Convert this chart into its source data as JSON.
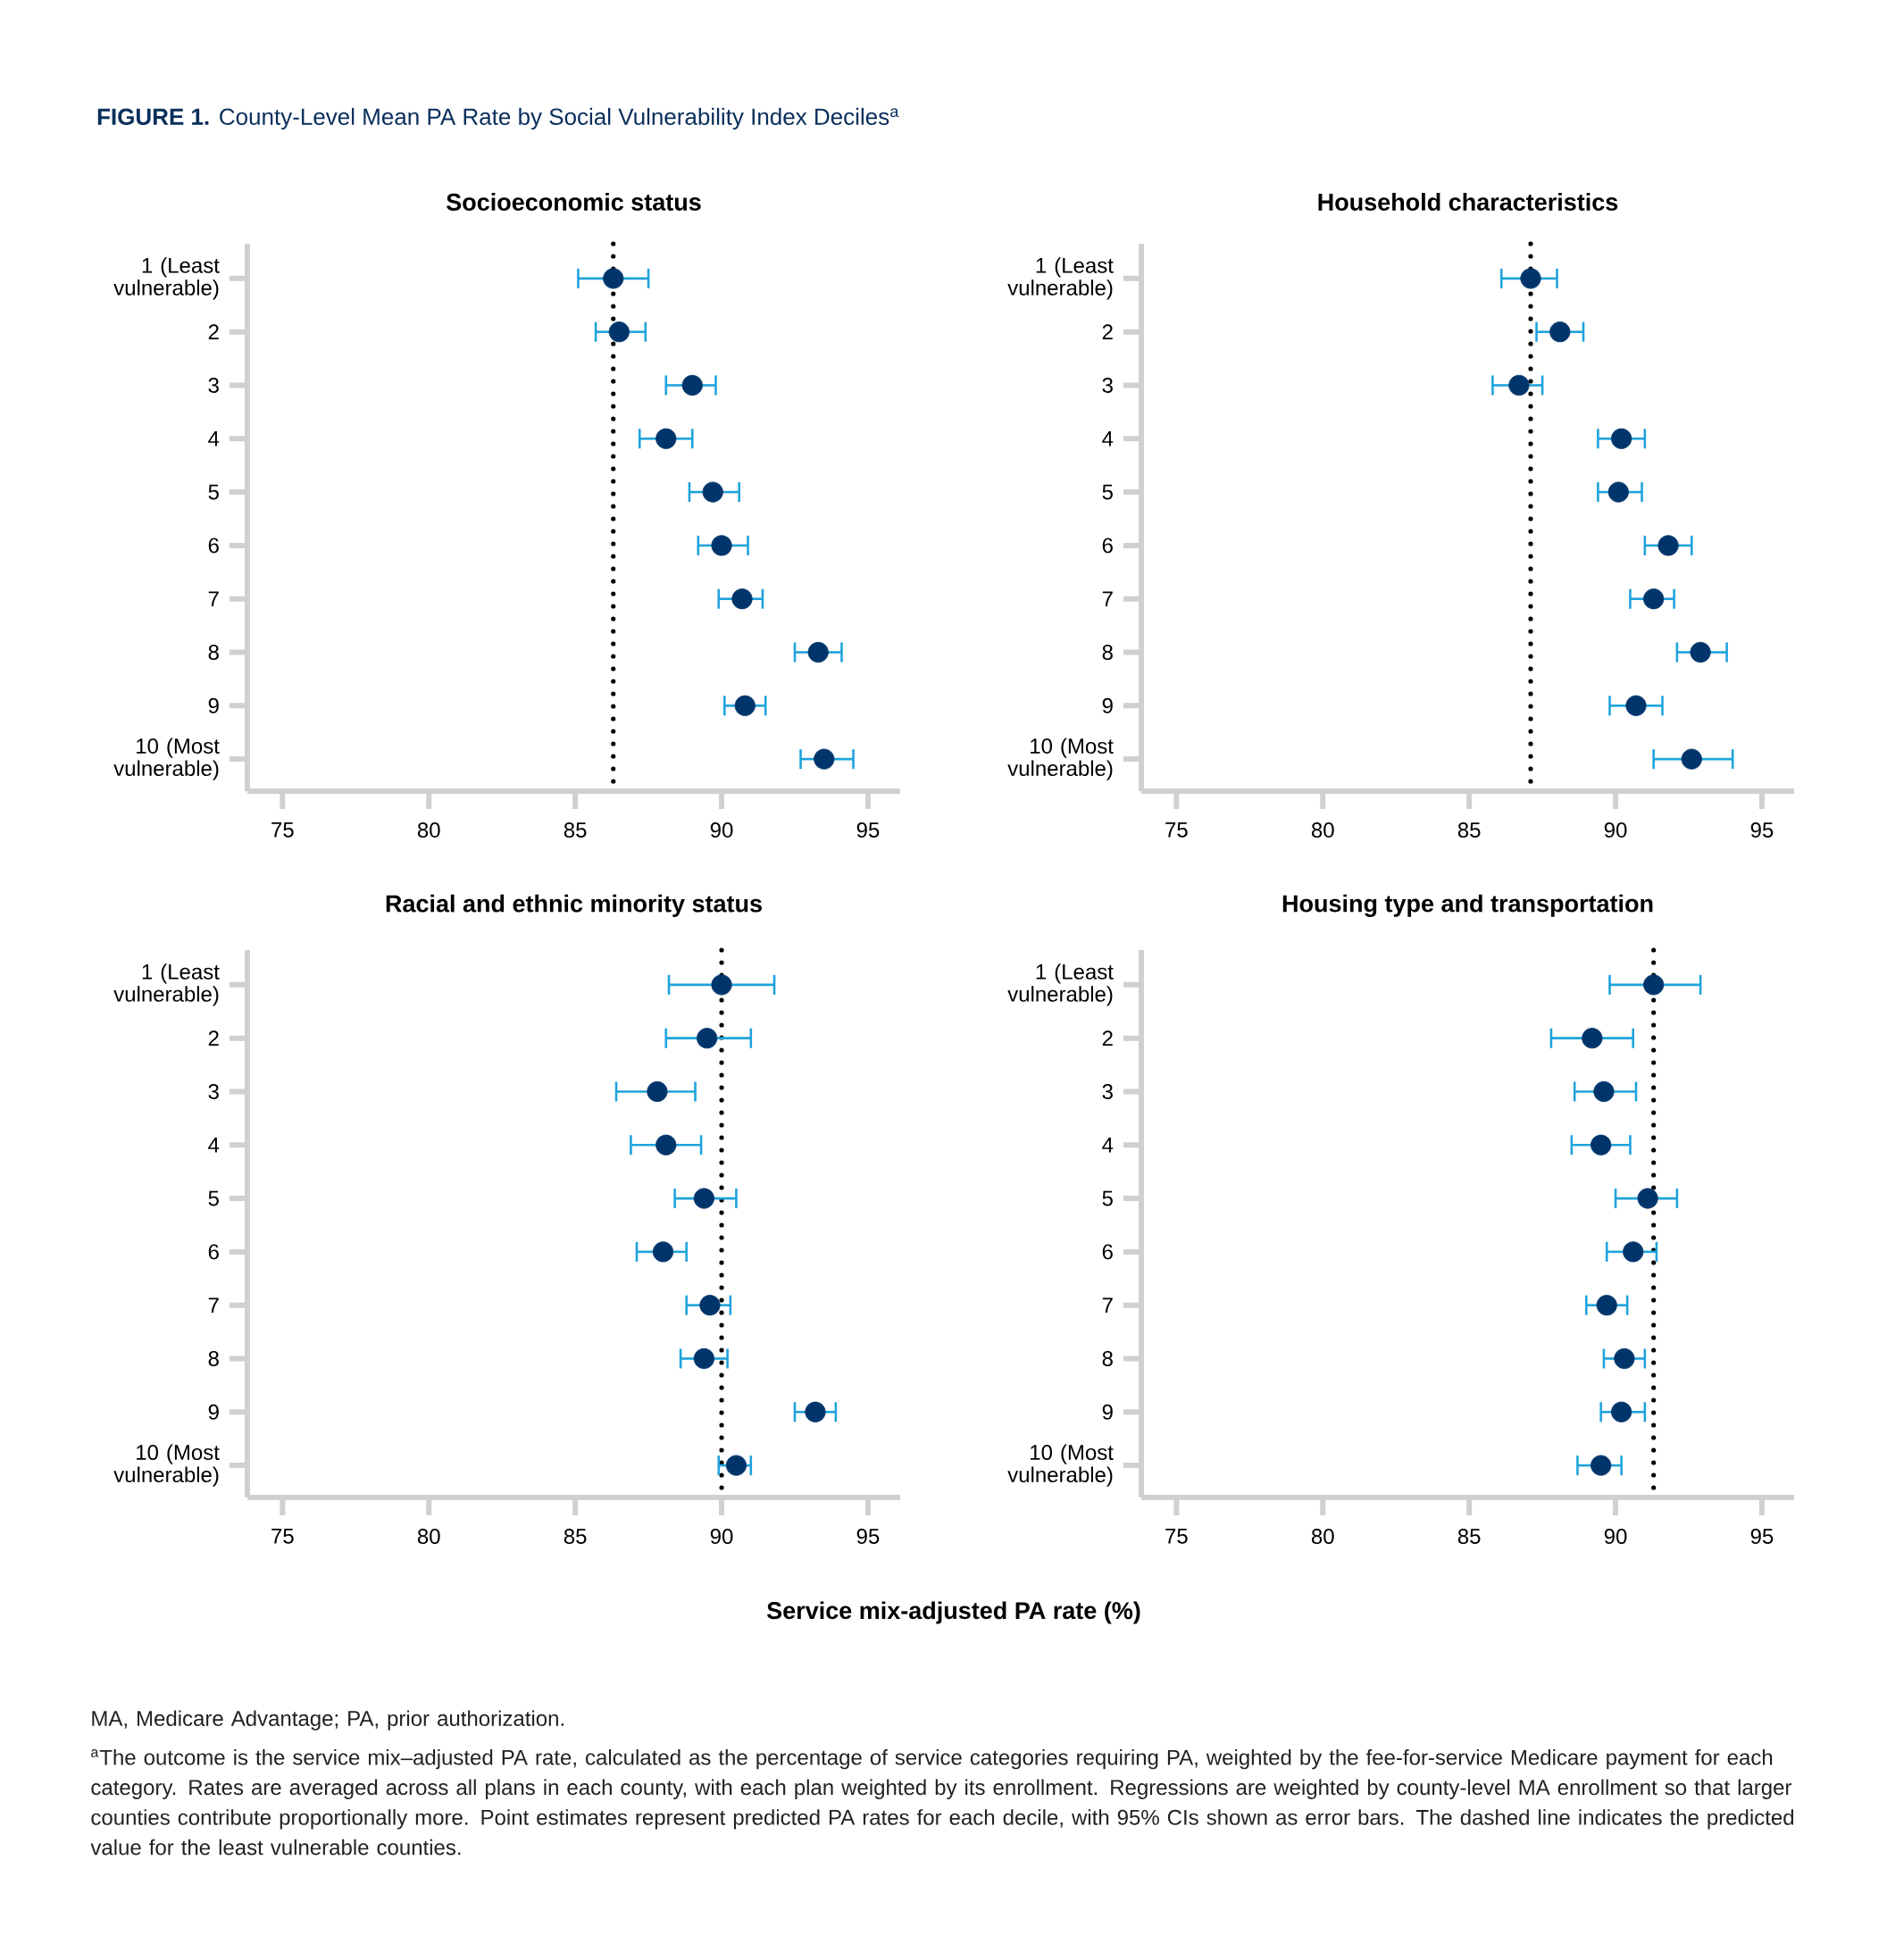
{
  "chart_data": [
    {
      "type": "scatter",
      "orientation": "horizontal",
      "title": "Socioeconomic status",
      "categories": [
        "1 (Least vulnerable)",
        "2",
        "3",
        "4",
        "5",
        "6",
        "7",
        "8",
        "9",
        "10 (Most vulnerable)"
      ],
      "xlim": [
        73.8,
        96.1
      ],
      "xticks": [
        75,
        80,
        85,
        90,
        95
      ],
      "color": "#00356b",
      "values": [
        86.3,
        86.5,
        89.0,
        88.1,
        89.7,
        90.0,
        90.7,
        93.3,
        90.8,
        93.5
      ],
      "errors": [
        [
          85.1,
          87.5
        ],
        [
          85.7,
          87.4
        ],
        [
          88.1,
          89.8
        ],
        [
          87.2,
          89.0
        ],
        [
          88.9,
          90.6
        ],
        [
          89.2,
          90.9
        ],
        [
          89.9,
          91.4
        ],
        [
          92.5,
          94.1
        ],
        [
          90.1,
          91.5
        ],
        [
          92.7,
          94.5
        ]
      ],
      "ref_lines": [
        {
          "axis": "x",
          "value": 86.3,
          "line_style": "dotted",
          "color": "#000000"
        }
      ]
    },
    {
      "type": "scatter",
      "orientation": "horizontal",
      "title": "Household characteristics",
      "categories": [
        "1 (Least vulnerable)",
        "2",
        "3",
        "4",
        "5",
        "6",
        "7",
        "8",
        "9",
        "10 (Most vulnerable)"
      ],
      "xlim": [
        73.8,
        96.1
      ],
      "xticks": [
        75,
        80,
        85,
        90,
        95
      ],
      "color": "#00356b",
      "values": [
        87.1,
        88.1,
        86.7,
        90.2,
        90.1,
        91.8,
        91.3,
        92.9,
        90.7,
        92.6
      ],
      "errors": [
        [
          86.1,
          88.0
        ],
        [
          87.3,
          88.9
        ],
        [
          85.8,
          87.5
        ],
        [
          89.4,
          91.0
        ],
        [
          89.4,
          90.9
        ],
        [
          91.0,
          92.6
        ],
        [
          90.5,
          92.0
        ],
        [
          92.1,
          93.8
        ],
        [
          89.8,
          91.6
        ],
        [
          91.3,
          94.0
        ]
      ],
      "ref_lines": [
        {
          "axis": "x",
          "value": 87.1,
          "line_style": "dotted",
          "color": "#000000"
        }
      ]
    },
    {
      "type": "scatter",
      "orientation": "horizontal",
      "title": "Racial and ethnic minority status",
      "xlabel": "Service mix-adjusted PA rate (%)",
      "categories": [
        "1 (Least vulnerable)",
        "2",
        "3",
        "4",
        "5",
        "6",
        "7",
        "8",
        "9",
        "10 (Most vulnerable)"
      ],
      "xlim": [
        73.8,
        96.1
      ],
      "xticks": [
        75,
        80,
        85,
        90,
        95
      ],
      "color": "#00356b",
      "values": [
        90.0,
        89.5,
        87.8,
        88.1,
        89.4,
        88.0,
        89.6,
        89.4,
        93.2,
        90.5
      ],
      "errors": [
        [
          88.2,
          91.8
        ],
        [
          88.1,
          91.0
        ],
        [
          86.4,
          89.1
        ],
        [
          86.9,
          89.3
        ],
        [
          88.4,
          90.5
        ],
        [
          87.1,
          88.8
        ],
        [
          88.8,
          90.3
        ],
        [
          88.6,
          90.2
        ],
        [
          92.5,
          93.9
        ],
        [
          89.9,
          91.0
        ]
      ],
      "ref_lines": [
        {
          "axis": "x",
          "value": 90.0,
          "line_style": "dotted",
          "color": "#000000"
        }
      ]
    },
    {
      "type": "scatter",
      "orientation": "horizontal",
      "title": "Housing type and transportation",
      "categories": [
        "1 (Least vulnerable)",
        "2",
        "3",
        "4",
        "5",
        "6",
        "7",
        "8",
        "9",
        "10 (Most vulnerable)"
      ],
      "xlim": [
        73.8,
        96.1
      ],
      "xticks": [
        75,
        80,
        85,
        90,
        95
      ],
      "color": "#00356b",
      "values": [
        91.3,
        89.2,
        89.6,
        89.5,
        91.1,
        90.6,
        89.7,
        90.3,
        90.2,
        89.5
      ],
      "errors": [
        [
          89.8,
          92.9
        ],
        [
          87.8,
          90.6
        ],
        [
          88.6,
          90.7
        ],
        [
          88.5,
          90.5
        ],
        [
          90.0,
          92.1
        ],
        [
          89.7,
          91.4
        ],
        [
          89.0,
          90.4
        ],
        [
          89.6,
          91.0
        ],
        [
          89.5,
          91.0
        ],
        [
          88.7,
          90.2
        ]
      ],
      "ref_lines": [
        {
          "axis": "x",
          "value": 91.3,
          "line_style": "dotted",
          "color": "#000000"
        }
      ]
    },
    {
      "type": "other",
      "title": "**FIGURE 1.** County-Level Mean PA Rate by Social Vulnerability Index Deciles$^{a}$",
      "annotations": [
        "MA, Medicare Advantage; PA, prior authorization.",
        "$^{a}$The outcome is the service mix–adjusted PA rate, calculated as the percentage of service categories requiring PA, weighted by the fee-for-service Medicare payment for each category. Rates are averaged across all plans in each county, with each plan weighted by its enrollment. Regressions are weighted by county-level MA enrollment so that larger counties contribute proportionally more. Point estimates represent predicted PA rates for each decile, with 95% CIs shown as error bars. The dashed line indicates the predicted value for the least vulnerable counties."
      ]
    }
  ]
}
